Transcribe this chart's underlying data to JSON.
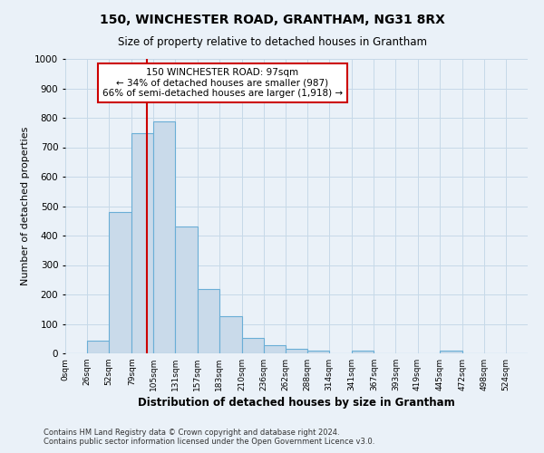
{
  "title": "150, WINCHESTER ROAD, GRANTHAM, NG31 8RX",
  "subtitle": "Size of property relative to detached houses in Grantham",
  "xlabel": "Distribution of detached houses by size in Grantham",
  "ylabel": "Number of detached properties",
  "bar_labels": [
    "0sqm",
    "26sqm",
    "52sqm",
    "79sqm",
    "105sqm",
    "131sqm",
    "157sqm",
    "183sqm",
    "210sqm",
    "236sqm",
    "262sqm",
    "288sqm",
    "314sqm",
    "341sqm",
    "367sqm",
    "393sqm",
    "419sqm",
    "445sqm",
    "472sqm",
    "498sqm",
    "524sqm"
  ],
  "bar_heights": [
    0,
    42,
    480,
    748,
    787,
    432,
    217,
    127,
    52,
    28,
    15,
    10,
    0,
    8,
    0,
    0,
    0,
    8,
    0,
    0,
    0
  ],
  "bin_edges": [
    0,
    26,
    52,
    79,
    105,
    131,
    157,
    183,
    210,
    236,
    262,
    288,
    314,
    341,
    367,
    393,
    419,
    445,
    472,
    498,
    524,
    550
  ],
  "bar_color": "#c9daea",
  "bar_edge_color": "#6aaed6",
  "vline_x": 97,
  "vline_color": "#cc0000",
  "annotation_text": "150 WINCHESTER ROAD: 97sqm\n← 34% of detached houses are smaller (987)\n66% of semi-detached houses are larger (1,918) →",
  "annotation_box_color": "#ffffff",
  "annotation_box_edge": "#cc0000",
  "ylim": [
    0,
    1000
  ],
  "yticks": [
    0,
    100,
    200,
    300,
    400,
    500,
    600,
    700,
    800,
    900,
    1000
  ],
  "grid_color": "#c6d9e8",
  "bg_color": "#eaf1f8",
  "footer_line1": "Contains HM Land Registry data © Crown copyright and database right 2024.",
  "footer_line2": "Contains public sector information licensed under the Open Government Licence v3.0."
}
